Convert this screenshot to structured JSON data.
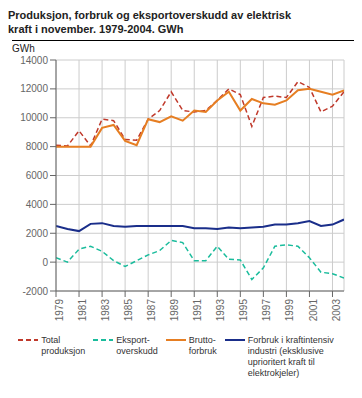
{
  "chart_data": {
    "type": "line",
    "title": "Produksjon, forbruk og eksportoverskudd av elektrisk\nkraft i november. 1979-2004. GWh",
    "y_label": "GWh",
    "x": [
      1979,
      1980,
      1981,
      1982,
      1983,
      1984,
      1985,
      1986,
      1987,
      1988,
      1989,
      1990,
      1991,
      1992,
      1993,
      1994,
      1995,
      1996,
      1997,
      1998,
      1999,
      2000,
      2001,
      2002,
      2003,
      2004
    ],
    "series": [
      {
        "name": "Total\nproduksjon",
        "color": "#c0392b",
        "line_style": "dashed",
        "values": [
          8100,
          8050,
          9100,
          8050,
          9900,
          9800,
          8500,
          8450,
          9900,
          10500,
          11800,
          10500,
          10400,
          10500,
          11200,
          12000,
          11600,
          9400,
          11400,
          11500,
          11400,
          12500,
          12100,
          10400,
          10800,
          11800
        ]
      },
      {
        "name": "Eksport-\noverskudd",
        "color": "#1abc9c",
        "line_style": "dashed",
        "values": [
          300,
          0,
          900,
          1100,
          750,
          100,
          -300,
          100,
          500,
          800,
          1500,
          1350,
          100,
          100,
          1100,
          200,
          150,
          -1200,
          -400,
          1100,
          1200,
          1100,
          300,
          -700,
          -800,
          -1100
        ]
      },
      {
        "name": "Brutto-\nforbruk",
        "color": "#e67e22",
        "line_style": "solid",
        "values": [
          8000,
          8000,
          8000,
          8000,
          9300,
          9500,
          8400,
          8100,
          9900,
          9700,
          10100,
          9800,
          10500,
          10400,
          11200,
          11800,
          10500,
          11300,
          11000,
          10900,
          11200,
          11900,
          12000,
          11800,
          11600,
          11900
        ]
      },
      {
        "name": "Forbruk i kraftintensiv\nindustri (eksklusive\nuprioritert kraft til\nelektrokjeler)",
        "color": "#1a2e8a",
        "line_style": "solid",
        "values": [
          2500,
          2300,
          2150,
          2650,
          2700,
          2500,
          2450,
          2500,
          2500,
          2500,
          2500,
          2500,
          2350,
          2350,
          2300,
          2400,
          2350,
          2400,
          2450,
          2600,
          2600,
          2700,
          2850,
          2500,
          2600,
          2950
        ]
      }
    ],
    "xlim": [
      1979,
      2004
    ],
    "xticks": [
      1979,
      1981,
      1983,
      1985,
      1987,
      1989,
      1991,
      1993,
      1995,
      1997,
      1999,
      2001,
      2003
    ],
    "ylim": [
      -2000,
      14000
    ],
    "yticks": [
      -2000,
      0,
      2000,
      4000,
      6000,
      8000,
      10000,
      12000,
      14000
    ],
    "grid": true,
    "legend": "bottom"
  }
}
